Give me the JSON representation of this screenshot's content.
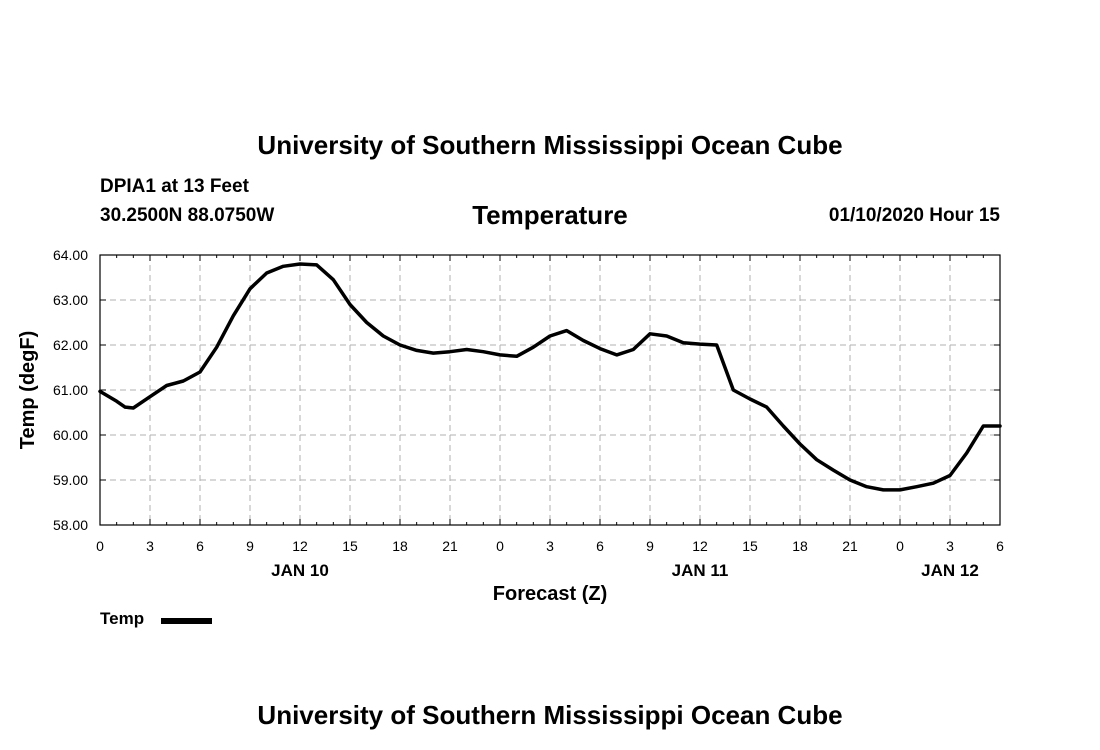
{
  "header": {
    "title": "University of Southern Mississippi Ocean Cube",
    "station": "DPIA1 at 13 Feet",
    "location": "30.2500N 88.0750W",
    "run_time": "01/10/2020 Hour 15"
  },
  "footer": {
    "title": "University of Southern Mississippi Ocean Cube"
  },
  "legend": {
    "label": "Temp",
    "color": "#000000"
  },
  "chart_data": {
    "type": "line",
    "title": "Temperature",
    "xlabel": "Forecast (Z)",
    "ylabel": "Temp (degF)",
    "xlim": [
      0,
      54
    ],
    "ylim": [
      58,
      64
    ],
    "grid": true,
    "x_ticks": [
      0,
      3,
      6,
      9,
      12,
      15,
      18,
      21,
      24,
      27,
      30,
      33,
      36,
      39,
      42,
      45,
      48,
      51,
      54
    ],
    "x_tick_labels": [
      "0",
      "3",
      "6",
      "9",
      "12",
      "15",
      "18",
      "21",
      "0",
      "3",
      "6",
      "9",
      "12",
      "15",
      "18",
      "21",
      "0",
      "3",
      "6"
    ],
    "y_ticks": [
      58,
      59,
      60,
      61,
      62,
      63,
      64
    ],
    "y_tick_labels": [
      "58.00",
      "59.00",
      "60.00",
      "61.00",
      "62.00",
      "63.00",
      "64.00"
    ],
    "date_labels": [
      {
        "x": 12,
        "label": "JAN 10"
      },
      {
        "x": 36,
        "label": "JAN 11"
      },
      {
        "x": 51,
        "label": "JAN 12"
      }
    ],
    "series": [
      {
        "name": "Temp",
        "color": "#000000",
        "x": [
          0,
          1,
          1.5,
          2,
          3,
          4,
          5,
          6,
          7,
          8,
          9,
          10,
          11,
          12,
          13,
          14,
          15,
          16,
          17,
          18,
          19,
          20,
          21,
          22,
          23,
          24,
          25,
          26,
          27,
          28,
          29,
          30,
          31,
          32,
          33,
          34,
          35,
          36,
          37,
          38,
          39,
          40,
          41,
          42,
          43,
          44,
          45,
          46,
          47,
          48,
          49,
          50,
          51,
          52,
          53,
          54
        ],
        "values": [
          60.97,
          60.75,
          60.62,
          60.6,
          60.85,
          61.1,
          61.2,
          61.4,
          61.95,
          62.65,
          63.25,
          63.6,
          63.75,
          63.8,
          63.78,
          63.45,
          62.9,
          62.5,
          62.2,
          62.0,
          61.88,
          61.82,
          61.85,
          61.9,
          61.85,
          61.78,
          61.75,
          61.95,
          62.2,
          62.32,
          62.1,
          61.92,
          61.78,
          61.9,
          62.25,
          62.2,
          62.05,
          62.02,
          62.0,
          61.0,
          60.8,
          60.62,
          60.2,
          59.8,
          59.45,
          59.22,
          59.0,
          58.85,
          58.78,
          58.78,
          58.85,
          58.93,
          59.1,
          59.6,
          60.2,
          60.2
        ]
      }
    ]
  }
}
